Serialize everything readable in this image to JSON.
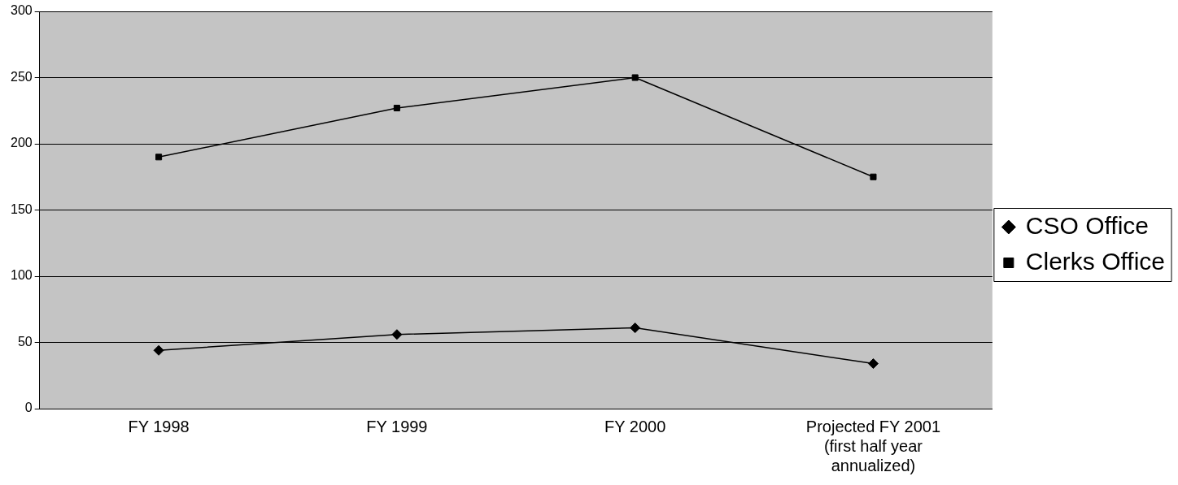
{
  "chart_data": {
    "type": "line",
    "categories": [
      "FY 1998",
      "FY 1999",
      "FY 2000",
      "Projected FY 2001 (first half year annualized)"
    ],
    "series": [
      {
        "name": "CSO Office",
        "color": "#000000",
        "marker": "diamond",
        "values": [
          44,
          56,
          61,
          34
        ]
      },
      {
        "name": "Clerks Office",
        "color": "#000000",
        "marker": "square",
        "values": [
          190,
          227,
          250,
          175
        ]
      }
    ],
    "ylim": [
      0,
      300
    ],
    "yticks": [
      0,
      50,
      100,
      150,
      200,
      250,
      300
    ],
    "grid": "y",
    "legend": "right",
    "line_style": "solid"
  }
}
